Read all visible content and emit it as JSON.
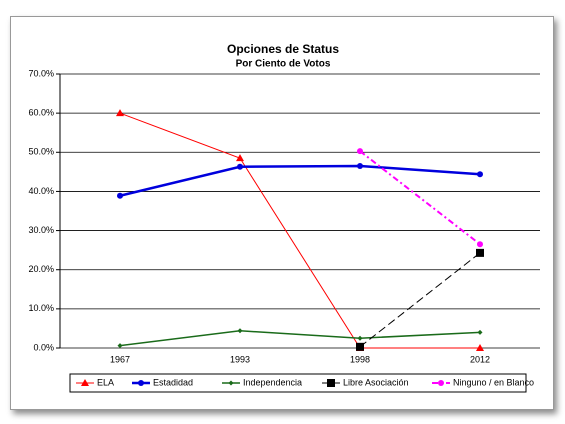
{
  "chart_data": {
    "type": "line",
    "title": "Opciones de Status",
    "subtitle": "Por Ciento de Votos",
    "categories": [
      "1967",
      "1993",
      "1998",
      "2012"
    ],
    "series": [
      {
        "name": "ELA",
        "color": "#ff0000",
        "marker": "triangle",
        "width": 1,
        "dash": "",
        "values": [
          60.0,
          48.5,
          0,
          0
        ]
      },
      {
        "name": "Estadidad",
        "color": "#0000dd",
        "marker": "circle",
        "width": 2.5,
        "dash": "",
        "values": [
          38.9,
          46.3,
          46.5,
          44.4
        ]
      },
      {
        "name": "Independencia",
        "color": "#1a6b1a",
        "marker": "diamond",
        "width": 1.5,
        "dash": "",
        "values": [
          0.6,
          4.4,
          2.5,
          4.0
        ]
      },
      {
        "name": "Libre Asociación",
        "color": "#000000",
        "marker": "square",
        "width": 1,
        "dash": "8 4",
        "values": [
          null,
          null,
          0.3,
          24.3
        ]
      },
      {
        "name": "Ninguno / en Blanco",
        "color": "#ff00ff",
        "marker": "circle",
        "width": 2,
        "dash": "6 3 2 3",
        "values": [
          null,
          null,
          50.3,
          26.5
        ]
      }
    ],
    "ylim": [
      0,
      70
    ],
    "yticks": [
      {
        "value": 0,
        "label": "0.0%"
      },
      {
        "value": 10,
        "label": "10.0%"
      },
      {
        "value": 20,
        "label": "20.0%"
      },
      {
        "value": 30,
        "label": "30.0%"
      },
      {
        "value": 40,
        "label": "40.0%"
      },
      {
        "value": 50,
        "label": "50.0%"
      },
      {
        "value": 60,
        "label": "60.0%"
      },
      {
        "value": 70,
        "label": "70.0%"
      }
    ],
    "grid": true
  }
}
